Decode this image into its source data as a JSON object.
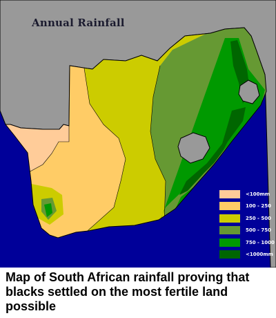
{
  "map": {
    "title": "Annual Rainfall",
    "legend": [
      {
        "label": "<100mm",
        "color": "#ffcc99"
      },
      {
        "label": "100 - 250",
        "color": "#ffcc66"
      },
      {
        "label": "250 - 500",
        "color": "#cccc00"
      },
      {
        "label": "500 - 750",
        "color": "#669933"
      },
      {
        "label": "750 - 1000",
        "color": "#009900"
      },
      {
        "label": "<1000mm",
        "color": "#006600"
      }
    ],
    "colors": {
      "ocean": "#000099",
      "neighbouring_land": "#999999",
      "lesotho_swaziland": "#999999",
      "border": "#000000"
    }
  },
  "caption": "Map of South African rainfall proving that blacks settled on the most fertile land possible"
}
